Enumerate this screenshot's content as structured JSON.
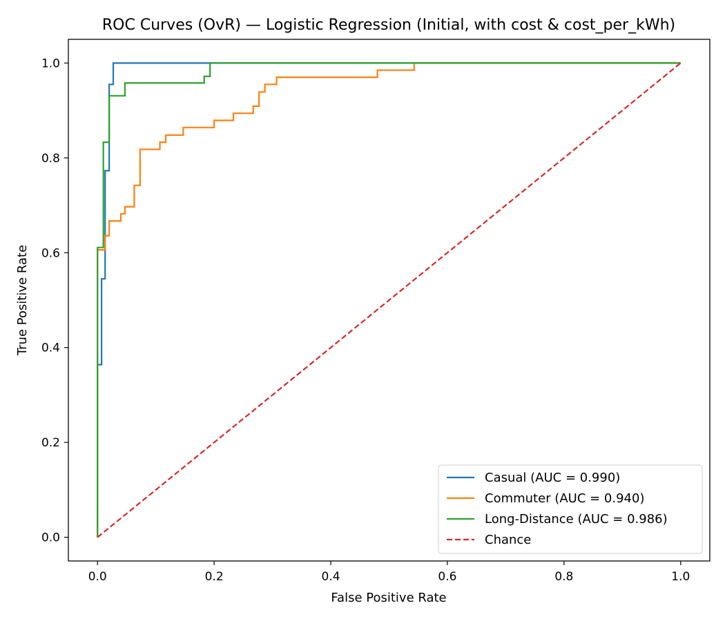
{
  "chart_data": {
    "type": "line",
    "title": "ROC Curves (OvR) — Logistic Regression (Initial, with cost & cost_per_kWh)",
    "xlabel": "False Positive Rate",
    "ylabel": "True Positive Rate",
    "xlim": [
      -0.05,
      1.05
    ],
    "ylim": [
      -0.05,
      1.05
    ],
    "xticks": [
      0.0,
      0.2,
      0.4,
      0.6,
      0.8,
      1.0
    ],
    "yticks": [
      0.0,
      0.2,
      0.4,
      0.6,
      0.8,
      1.0
    ],
    "xtick_labels": [
      "0.0",
      "0.2",
      "0.4",
      "0.6",
      "0.8",
      "1.0"
    ],
    "ytick_labels": [
      "0.0",
      "0.2",
      "0.4",
      "0.6",
      "0.8",
      "1.0"
    ],
    "grid": false,
    "legend_position": "lower-right",
    "series": [
      {
        "name": "Casual (AUC = 0.990)",
        "color": "#1f77b4",
        "style": "solid",
        "x": [
          0.0,
          0.0,
          0.007,
          0.007,
          0.013,
          0.013,
          0.02,
          0.02,
          0.027,
          0.027,
          0.04,
          0.1,
          0.2,
          0.3,
          0.4,
          0.5,
          0.6,
          0.8,
          1.0
        ],
        "y": [
          0.0,
          0.364,
          0.364,
          0.545,
          0.545,
          0.773,
          0.773,
          0.955,
          0.955,
          1.0,
          1.0,
          1.0,
          1.0,
          1.0,
          1.0,
          1.0,
          1.0,
          1.0,
          1.0
        ]
      },
      {
        "name": "Commuter (AUC = 0.940)",
        "color": "#ff7f0e",
        "style": "solid",
        "x": [
          0.0,
          0.0,
          0.013,
          0.013,
          0.02,
          0.02,
          0.027,
          0.027,
          0.04,
          0.04,
          0.047,
          0.047,
          0.053,
          0.053,
          0.063,
          0.063,
          0.073,
          0.073,
          0.107,
          0.107,
          0.117,
          0.117,
          0.147,
          0.147,
          0.2,
          0.2,
          0.233,
          0.233,
          0.267,
          0.267,
          0.277,
          0.277,
          0.287,
          0.287,
          0.307,
          0.307,
          0.48,
          0.48,
          0.543,
          0.543,
          1.0
        ],
        "y": [
          0.0,
          0.606,
          0.606,
          0.636,
          0.636,
          0.667,
          0.667,
          0.667,
          0.667,
          0.682,
          0.682,
          0.697,
          0.697,
          0.697,
          0.697,
          0.742,
          0.742,
          0.818,
          0.818,
          0.833,
          0.833,
          0.848,
          0.848,
          0.864,
          0.864,
          0.879,
          0.879,
          0.894,
          0.894,
          0.909,
          0.909,
          0.939,
          0.939,
          0.955,
          0.955,
          0.97,
          0.97,
          0.985,
          0.985,
          1.0,
          1.0
        ]
      },
      {
        "name": "Long-Distance (AUC = 0.986)",
        "color": "#2ca02c",
        "style": "solid",
        "x": [
          0.0,
          0.0,
          0.01,
          0.01,
          0.02,
          0.02,
          0.027,
          0.027,
          0.047,
          0.047,
          0.183,
          0.183,
          0.193,
          0.193,
          1.0
        ],
        "y": [
          0.0,
          0.611,
          0.611,
          0.833,
          0.833,
          0.931,
          0.931,
          0.931,
          0.931,
          0.958,
          0.958,
          0.972,
          0.972,
          1.0,
          1.0
        ]
      },
      {
        "name": "Chance",
        "color": "#d62728",
        "style": "dashed",
        "x": [
          0.0,
          1.0
        ],
        "y": [
          0.0,
          1.0
        ]
      }
    ]
  }
}
